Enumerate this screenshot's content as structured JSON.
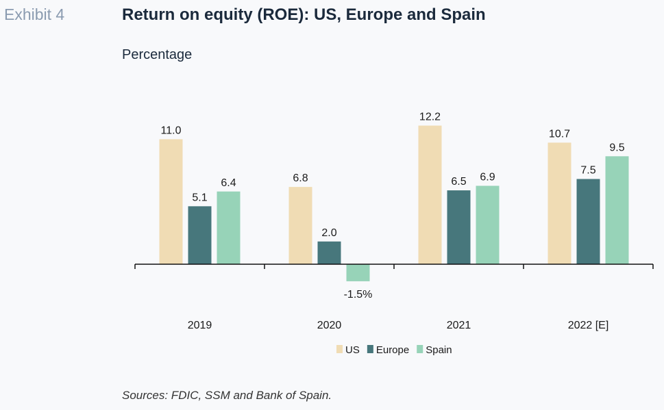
{
  "header": {
    "exhibit": "Exhibit 4",
    "title": "Return on equity (ROE): US, Europe and Spain",
    "subtitle": "Percentage"
  },
  "footer": {
    "source": "Sources: FDIC, SSM and Bank of Spain."
  },
  "chart_data": {
    "type": "bar",
    "categories": [
      "2019",
      "2020",
      "2021",
      "2022 [E]"
    ],
    "series": [
      {
        "name": "US",
        "color": "#f0dcb4",
        "values": [
          11.0,
          6.8,
          12.2,
          10.7
        ],
        "labels": [
          "11.0",
          "6.8",
          "12.2",
          "10.7"
        ]
      },
      {
        "name": "Europe",
        "color": "#47777c",
        "values": [
          5.1,
          2.0,
          6.5,
          7.5
        ],
        "labels": [
          "5.1",
          "2.0",
          "6.5",
          "7.5"
        ]
      },
      {
        "name": "Spain",
        "color": "#97d3b8",
        "values": [
          6.4,
          -1.5,
          6.9,
          9.5
        ],
        "labels": [
          "6.4",
          "-1.5%",
          "6.9",
          "9.5"
        ]
      }
    ],
    "legend_position": "bottom",
    "grid": false
  }
}
